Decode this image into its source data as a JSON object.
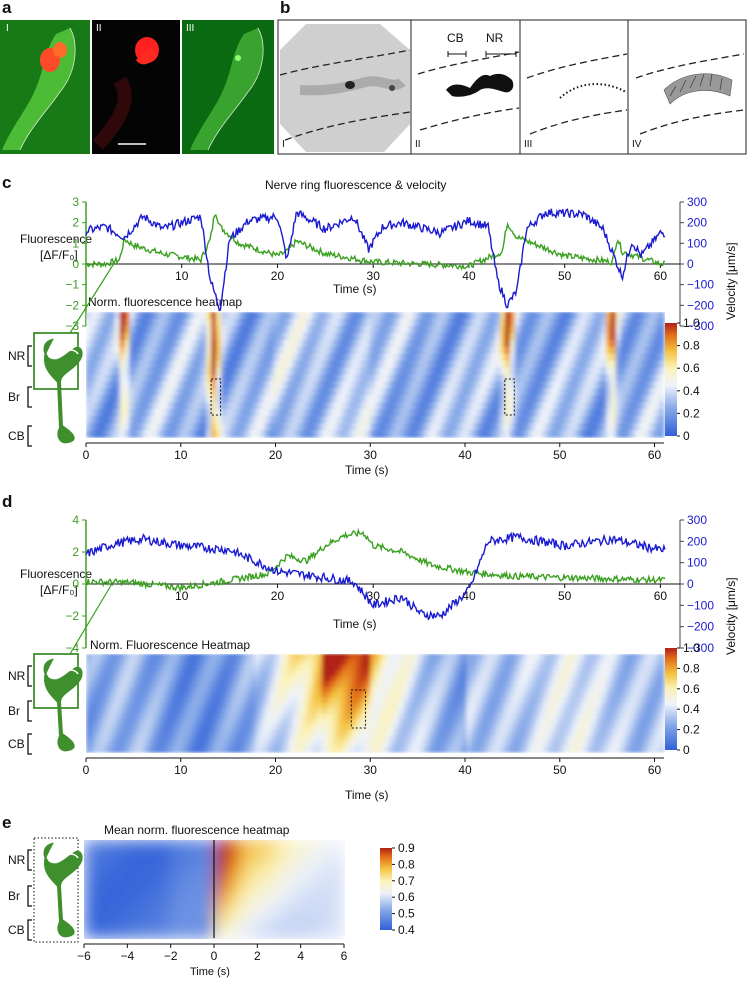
{
  "panel_a": {
    "label": "a",
    "sub_labels": [
      "I",
      "II",
      "III"
    ]
  },
  "panel_b": {
    "label": "b",
    "sub_labels": [
      "I",
      "II",
      "III",
      "IV"
    ],
    "annotations": {
      "cb": "CB",
      "nr": "NR"
    }
  },
  "panel_c": {
    "label": "c",
    "trace_title": "Nerve ring fluorescence & velocity",
    "heatmap_title": "Norm. fluorescence heatmap",
    "regions": [
      "NR",
      "Br",
      "CB"
    ],
    "colorbar_ticks": [
      "1.0",
      "0.8",
      "0.6",
      "0.4",
      "0.2",
      "0"
    ]
  },
  "panel_d": {
    "label": "d",
    "heatmap_title": "Norm. Fluorescence Heatmap",
    "regions": [
      "NR",
      "Br",
      "CB"
    ],
    "colorbar_ticks": [
      "1.0",
      "0.8",
      "0.6",
      "0.4",
      "0.2",
      "0"
    ]
  },
  "panel_e": {
    "label": "e",
    "heatmap_title": "Mean norm. fluorescence heatmap",
    "regions": [
      "NR",
      "Br",
      "CB"
    ],
    "colorbar_ticks": [
      "0.9",
      "0.8",
      "0.7",
      "0.6",
      "0.5",
      "0.4"
    ],
    "xlabel": "Time (s)"
  },
  "colors": {
    "fluorescence": "#3aa020",
    "velocity": "#1a1ad0",
    "worm": "#3f8f2c"
  },
  "chart_data": [
    {
      "id": "c-trace",
      "type": "line",
      "title": "Nerve ring fluorescence & velocity",
      "xlabel": "Time (s)",
      "xlim": [
        0,
        61
      ],
      "x_ticks": [
        "10",
        "20",
        "30",
        "40",
        "50",
        "60"
      ],
      "ylabel_left": [
        "Fluorescence",
        "[ΔF/F₀]"
      ],
      "ylim_left": [
        -3,
        3
      ],
      "y_ticks_left": [
        "3",
        "2",
        "1",
        "0",
        "−1",
        "−2",
        "−3"
      ],
      "ylabel_right": "Velocity [μm/s]",
      "ylim_right": [
        -300,
        300
      ],
      "y_ticks_right": [
        "300",
        "200",
        "100",
        "0",
        "−100",
        "−200",
        "−300"
      ],
      "series": [
        {
          "name": "Fluorescence",
          "axis": "left",
          "x": [
            0,
            2,
            3.5,
            4,
            5,
            8,
            12,
            13,
            13.5,
            14,
            16,
            20,
            21,
            22,
            25,
            30,
            35,
            40,
            43.5,
            44,
            45,
            50,
            55,
            55.5,
            56,
            60
          ],
          "y": [
            0,
            0,
            0.2,
            1.2,
            0.9,
            0.5,
            0.2,
            1.2,
            2.6,
            1.8,
            1.0,
            0.4,
            0.6,
            1.1,
            0.5,
            0.1,
            0.0,
            -0.1,
            0.6,
            2.0,
            1.3,
            0.4,
            0.1,
            1.3,
            0.6,
            0.0
          ]
        },
        {
          "name": "Velocity",
          "axis": "right",
          "x": [
            0,
            2,
            4,
            6,
            8,
            10,
            12,
            13,
            14,
            15,
            17,
            20,
            21,
            22,
            25,
            28,
            29.5,
            31,
            33,
            37,
            40,
            42,
            43,
            44,
            45,
            46,
            48,
            52,
            54,
            56,
            57,
            58,
            60
          ],
          "y": [
            160,
            180,
            130,
            230,
            170,
            200,
            230,
            -80,
            -220,
            120,
            210,
            230,
            20,
            250,
            170,
            230,
            70,
            180,
            200,
            150,
            210,
            180,
            -80,
            -200,
            -130,
            170,
            250,
            240,
            170,
            -60,
            110,
            40,
            150
          ]
        }
      ]
    },
    {
      "id": "c-heatmap",
      "type": "heatmap",
      "title": "Norm. fluorescence heatmap",
      "xlabel": "Time (s)",
      "xlim": [
        0,
        61
      ],
      "x_ticks": [
        "0",
        "10",
        "20",
        "30",
        "40",
        "50",
        "60"
      ],
      "rows": [
        "NR",
        "Br",
        "CB"
      ],
      "color_range": [
        0,
        1
      ],
      "peak_times_s": [
        4,
        13.5,
        44.5,
        55.5
      ],
      "highlight_windows_s": [
        [
          13.2,
          14.2
        ],
        [
          44.2,
          45.2
        ]
      ]
    },
    {
      "id": "d-trace",
      "type": "line",
      "xlabel": "Time (s)",
      "xlim": [
        0,
        61
      ],
      "x_ticks": [
        "10",
        "20",
        "30",
        "40",
        "50",
        "60"
      ],
      "ylabel_left": [
        "Fluorescence",
        "[ΔF/F₀]"
      ],
      "ylim_left": [
        -5,
        5
      ],
      "y_ticks_left": [
        "4",
        "2",
        "0",
        "−2",
        "−4"
      ],
      "ylabel_right": "Velocity [μm/s]",
      "ylim_right": [
        -300,
        300
      ],
      "y_ticks_right": [
        "300",
        "200",
        "100",
        "0",
        "−100",
        "−200",
        "−300"
      ],
      "series": [
        {
          "name": "Fluorescence",
          "axis": "left",
          "x": [
            0,
            5,
            10,
            15,
            19,
            21,
            23,
            25,
            27,
            29,
            30,
            33,
            36,
            40,
            45,
            50,
            55,
            60
          ],
          "y": [
            0.2,
            0.1,
            -0.3,
            0.3,
            0.8,
            2.2,
            1.8,
            3.0,
            3.8,
            4.0,
            3.0,
            2.5,
            1.5,
            0.9,
            0.6,
            0.5,
            0.4,
            0.3
          ]
        },
        {
          "name": "Velocity",
          "axis": "right",
          "x": [
            0,
            3,
            6,
            10,
            15,
            20,
            25,
            28,
            30,
            33,
            35,
            37,
            40,
            42,
            45,
            50,
            55,
            60
          ],
          "y": [
            140,
            190,
            210,
            180,
            160,
            60,
            30,
            10,
            -100,
            -60,
            -140,
            -150,
            -30,
            200,
            220,
            180,
            210,
            160
          ]
        }
      ]
    },
    {
      "id": "d-heatmap",
      "type": "heatmap",
      "title": "Norm. Fluorescence Heatmap",
      "xlabel": "Time (s)",
      "xlim": [
        0,
        61
      ],
      "x_ticks": [
        "0",
        "10",
        "20",
        "30",
        "40",
        "50",
        "60"
      ],
      "rows": [
        "NR",
        "Br",
        "CB"
      ],
      "color_range": [
        0,
        1
      ],
      "active_window_s": [
        20,
        31
      ],
      "highlight_windows_s": [
        [
          28,
          29.5
        ]
      ]
    },
    {
      "id": "e-heatmap",
      "type": "heatmap",
      "title": "Mean norm. fluorescence heatmap",
      "xlabel": "Time (s)",
      "xlim": [
        -6,
        6
      ],
      "x_ticks": [
        "−6",
        "−4",
        "−2",
        "0",
        "2",
        "4",
        "6"
      ],
      "rows": [
        "NR",
        "Br",
        "CB"
      ],
      "color_range": [
        0.4,
        0.9
      ],
      "onset_time_s": 0
    }
  ]
}
